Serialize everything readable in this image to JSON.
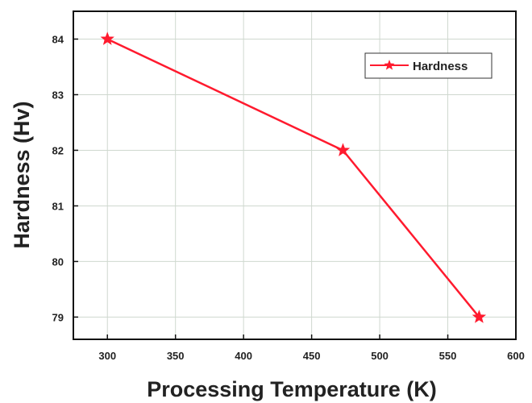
{
  "chart_data": {
    "type": "line",
    "title": "",
    "xlabel": "Processing Temperature (K)",
    "ylabel": "Hardness (Hv)",
    "xlim": [
      275,
      600
    ],
    "ylim": [
      78.6,
      84.5
    ],
    "xticks": [
      300,
      350,
      400,
      450,
      500,
      550,
      600
    ],
    "yticks": [
      79,
      80,
      81,
      82,
      83,
      84
    ],
    "grid": true,
    "legend": "top-right",
    "series": [
      {
        "name": "Hardness",
        "color": "#ff1a2e",
        "marker": "star",
        "x": [
          300,
          473,
          573
        ],
        "y": [
          84,
          82,
          79
        ]
      }
    ]
  }
}
